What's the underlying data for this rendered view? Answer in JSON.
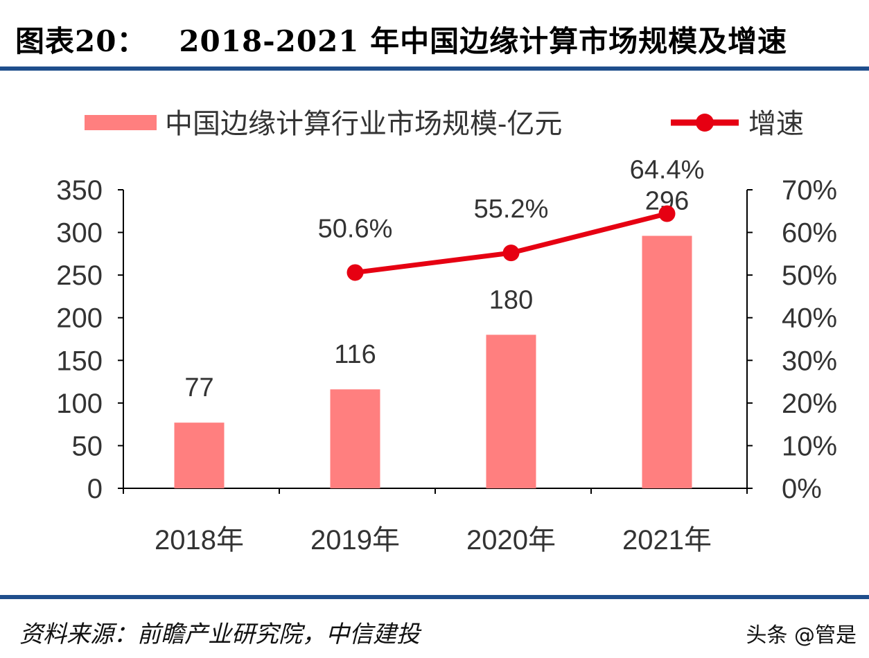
{
  "header": {
    "title": "图表20：   2018-2021 年中国边缘计算市场规模及增速"
  },
  "footer": {
    "source": "资料来源：前瞻产业研究院，中信建投",
    "watermark": "头条 @管是"
  },
  "colors": {
    "bar": "#FF7F7F",
    "line": "#E60012",
    "rule": "#1F4E8C"
  },
  "chart_data": {
    "type": "bar+line",
    "categories": [
      "2018年",
      "2019年",
      "2020年",
      "2021年"
    ],
    "series": [
      {
        "name": "中国边缘计算行业市场规模-亿元",
        "type": "bar",
        "axis": "left",
        "values": [
          77,
          116,
          180,
          296
        ],
        "labels": [
          "77",
          "116",
          "180",
          "296"
        ]
      },
      {
        "name": "增速",
        "type": "line",
        "axis": "right",
        "values": [
          null,
          50.6,
          55.2,
          64.4
        ],
        "labels": [
          "",
          "50.6%",
          "55.2%",
          "64.4%"
        ]
      }
    ],
    "left_axis": {
      "range": [
        0,
        350
      ],
      "ticks": [
        "0",
        "50",
        "100",
        "150",
        "200",
        "250",
        "300",
        "350"
      ]
    },
    "right_axis": {
      "range": [
        0,
        70
      ],
      "ticks": [
        "0%",
        "10%",
        "20%",
        "30%",
        "40%",
        "50%",
        "60%",
        "70%"
      ]
    },
    "legend": "top",
    "grid": false
  }
}
